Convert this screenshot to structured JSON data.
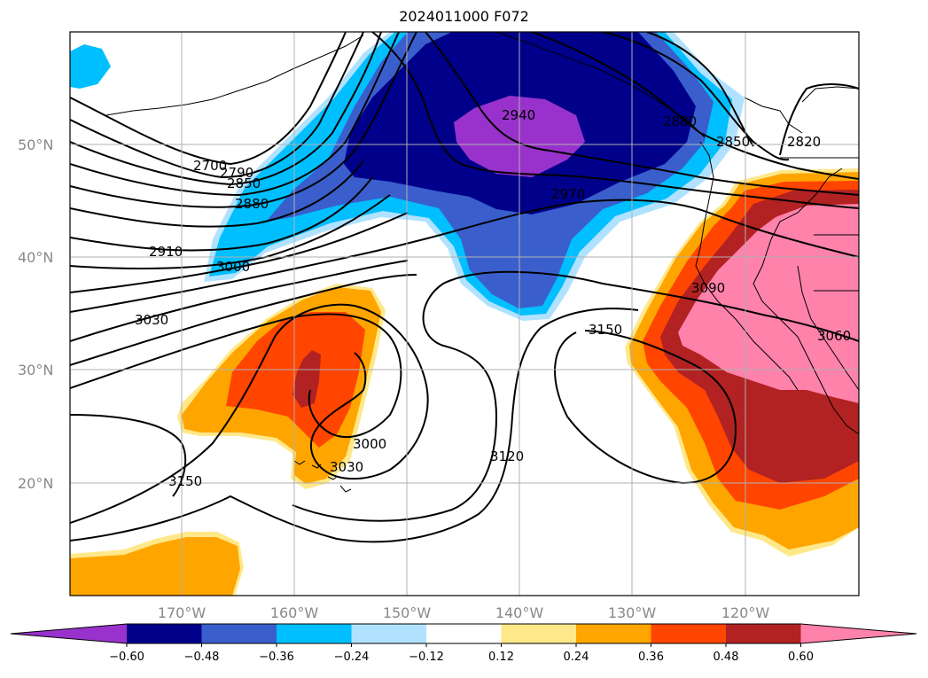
{
  "title": "2024011000 F072",
  "lat_labels": [
    "50°N",
    "40°N",
    "30°N",
    "20°N"
  ],
  "lon_labels": [
    "170°W",
    "160°W",
    "150°W",
    "140°W",
    "130°W",
    "120°W"
  ],
  "contour_labels": [
    "2700",
    "2790",
    "2850",
    "2880",
    "2910",
    "3000",
    "3030",
    "3150",
    "3000",
    "3030",
    "3120",
    "3150",
    "2940",
    "2970",
    "2880",
    "2850",
    "2820",
    "3090",
    "3060"
  ],
  "colorbar": {
    "ticks": [
      "−0.60",
      "−0.48",
      "−0.36",
      "−0.24",
      "−0.12",
      "0.12",
      "0.24",
      "0.36",
      "0.48",
      "0.60"
    ],
    "colors": [
      "#9932cc",
      "#00008b",
      "#3a5fcd",
      "#00bfff",
      "#b0e2ff",
      "#ffffff",
      "#ffe88a",
      "#ffa500",
      "#ff4500",
      "#b22222",
      "#ff82ab"
    ]
  }
}
